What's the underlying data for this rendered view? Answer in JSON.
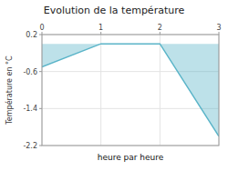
{
  "chart_data": {
    "type": "area",
    "title": "Evolution de la température",
    "xlabel": "heure par heure",
    "ylabel": "Température en °C",
    "x": [
      0,
      1,
      2,
      3
    ],
    "values": [
      -0.5,
      0.0,
      0.0,
      -2.0
    ],
    "color": "#5ab4c8",
    "xlim": [
      0,
      3
    ],
    "ylim": [
      -2.2,
      0.2
    ],
    "xticks": [
      0,
      1,
      2,
      3
    ],
    "yticks": [
      0.2,
      -0.6,
      -1.4,
      -2.2
    ],
    "grid": true
  }
}
